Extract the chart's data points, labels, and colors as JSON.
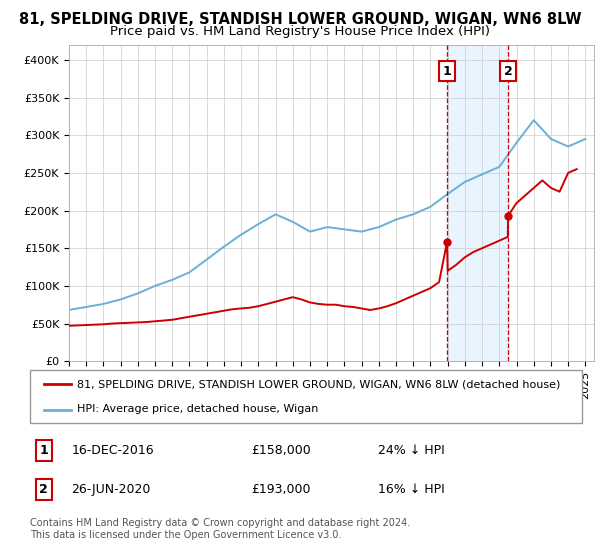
{
  "title": "81, SPELDING DRIVE, STANDISH LOWER GROUND, WIGAN, WN6 8LW",
  "subtitle": "Price paid vs. HM Land Registry's House Price Index (HPI)",
  "ylabel_ticks": [
    "£0",
    "£50K",
    "£100K",
    "£150K",
    "£200K",
    "£250K",
    "£300K",
    "£350K",
    "£400K"
  ],
  "ytick_values": [
    0,
    50000,
    100000,
    150000,
    200000,
    250000,
    300000,
    350000,
    400000
  ],
  "ylim": [
    0,
    420000
  ],
  "xlim_start": 1995.0,
  "xlim_end": 2025.5,
  "hpi_x": [
    1995,
    1996,
    1997,
    1998,
    1999,
    2000,
    2001,
    2002,
    2003,
    2004,
    2005,
    2006,
    2007,
    2008,
    2009,
    2010,
    2011,
    2012,
    2013,
    2014,
    2015,
    2016,
    2017,
    2018,
    2019,
    2020,
    2021,
    2022,
    2023,
    2024,
    2025
  ],
  "hpi_values": [
    68000,
    72000,
    76000,
    82000,
    90000,
    100000,
    108000,
    118000,
    135000,
    152000,
    168000,
    182000,
    195000,
    185000,
    172000,
    178000,
    175000,
    172000,
    178000,
    188000,
    195000,
    205000,
    222000,
    238000,
    248000,
    258000,
    290000,
    320000,
    295000,
    285000,
    295000
  ],
  "red_line_x": [
    1995.0,
    1995.5,
    1996.0,
    1996.5,
    1997.0,
    1997.5,
    1998.0,
    1998.5,
    1999.0,
    1999.5,
    2000.0,
    2000.5,
    2001.0,
    2001.5,
    2002.0,
    2002.5,
    2003.0,
    2003.5,
    2004.0,
    2004.5,
    2005.0,
    2005.5,
    2006.0,
    2006.5,
    2007.0,
    2007.5,
    2008.0,
    2008.5,
    2009.0,
    2009.5,
    2010.0,
    2010.5,
    2011.0,
    2011.5,
    2012.0,
    2012.5,
    2013.0,
    2013.5,
    2014.0,
    2014.5,
    2015.0,
    2015.5,
    2016.0,
    2016.5,
    2016.96,
    2017.0,
    2017.5,
    2018.0,
    2018.5,
    2019.0,
    2019.5,
    2020.0,
    2020.49,
    2020.51,
    2021.0,
    2021.5,
    2022.0,
    2022.5,
    2023.0,
    2023.5,
    2024.0,
    2024.5
  ],
  "red_line_y": [
    47000,
    47500,
    48000,
    48500,
    49000,
    50000,
    50500,
    51000,
    51500,
    52000,
    53000,
    54000,
    55000,
    57000,
    59000,
    61000,
    63000,
    65000,
    67000,
    69000,
    70000,
    71000,
    73000,
    76000,
    79000,
    82000,
    85000,
    82000,
    78000,
    76000,
    75000,
    75000,
    73000,
    72000,
    70000,
    68000,
    70000,
    73000,
    77000,
    82000,
    87000,
    92000,
    97000,
    105000,
    158000,
    120000,
    128000,
    138000,
    145000,
    150000,
    155000,
    160000,
    165000,
    193000,
    210000,
    220000,
    230000,
    240000,
    230000,
    225000,
    250000,
    255000
  ],
  "sale1_x": 2016.96,
  "sale1_y": 158000,
  "sale1_label": "1",
  "sale1_date": "16-DEC-2016",
  "sale1_price": "£158,000",
  "sale1_hpi": "24% ↓ HPI",
  "sale2_x": 2020.5,
  "sale2_y": 193000,
  "sale2_label": "2",
  "sale2_date": "26-JUN-2020",
  "sale2_price": "£193,000",
  "sale2_hpi": "16% ↓ HPI",
  "vline1_x": 2016.96,
  "vline2_x": 2020.5,
  "hpi_color": "#6baed6",
  "red_color": "#cc0000",
  "vline_color": "#cc0000",
  "bg_shade_color": "#ddeeff",
  "legend_label_red": "81, SPELDING DRIVE, STANDISH LOWER GROUND, WIGAN, WN6 8LW (detached house)",
  "legend_label_blue": "HPI: Average price, detached house, Wigan",
  "footnote": "Contains HM Land Registry data © Crown copyright and database right 2024.\nThis data is licensed under the Open Government Licence v3.0.",
  "title_fontsize": 10.5,
  "subtitle_fontsize": 9.5,
  "tick_fontsize": 8,
  "footnote_fontsize": 7
}
